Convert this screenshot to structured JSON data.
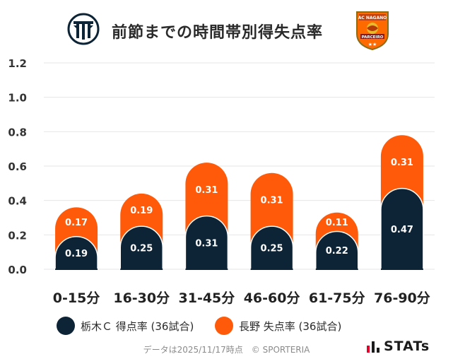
{
  "header": {
    "title": "前節までの時間帯別得失点率",
    "left_team_logo_text": "TTT",
    "right_team_logo_text_top": "AC NAGANO",
    "right_team_logo_text_bottom": "PARCEIRO"
  },
  "chart_data": {
    "type": "bar",
    "stacked": true,
    "title": "前節までの時間帯別得失点率",
    "categories": [
      "0-15分",
      "16-30分",
      "31-45分",
      "46-60分",
      "61-75分",
      "76-90分"
    ],
    "series": [
      {
        "name": "栃木Ｃ 得点率 (36試合)",
        "values": [
          0.19,
          0.25,
          0.31,
          0.25,
          0.22,
          0.47
        ],
        "color": "#0d2436"
      },
      {
        "name": "長野 失点率 (36試合)",
        "values": [
          0.17,
          0.19,
          0.31,
          0.31,
          0.11,
          0.31
        ],
        "color": "#ff5a0a"
      }
    ],
    "value_labels": [
      [
        "0.19",
        "0.25",
        "0.31",
        "0.25",
        "0.22",
        "0.47"
      ],
      [
        "0.17",
        "0.19",
        "0.31",
        "0.31",
        "0.11",
        "0.31"
      ]
    ],
    "ylim": [
      0,
      1.2
    ],
    "yticks": [
      "0.0",
      "0.2",
      "0.4",
      "0.6",
      "0.8",
      "1.0",
      "1.2"
    ],
    "xlabel": "",
    "ylabel": "",
    "grid": true,
    "legend": "bottom"
  },
  "legend": {
    "items": [
      {
        "label": "栃木Ｃ 得点率 (36試合)",
        "color": "#0d2436"
      },
      {
        "label": "長野 失点率 (36試合)",
        "color": "#ff5a0a"
      }
    ]
  },
  "footer": {
    "note": "データは2025/11/17時点　© SPORTERIA",
    "brand": "STATs"
  },
  "colors": {
    "home": "#0d2436",
    "away": "#ff5a0a",
    "grid": "#e6e6e6"
  }
}
